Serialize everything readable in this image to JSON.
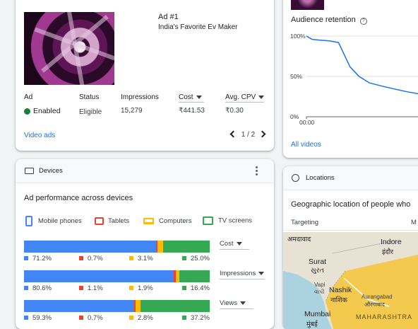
{
  "ad_card": {
    "ad_number": "Ad #1",
    "ad_title": "India's Favorite Ev Maker",
    "columns": [
      "Ad",
      "Status",
      "Impressions",
      "Cost",
      "Avg. CPV"
    ],
    "row": {
      "ad": "Enabled",
      "status": "Eligible",
      "impressions": "15,279",
      "cost": "₹441.53",
      "avg_cpv": "₹0.30"
    },
    "link": "Video ads",
    "pager": "1 / 2"
  },
  "retention": {
    "title": "Audience retention",
    "y_ticks": [
      "100%",
      "50%",
      "0%"
    ],
    "x_tick": "00:00",
    "link": "All videos",
    "chart_data": {
      "type": "line",
      "x": [
        0,
        0.05,
        0.12,
        0.2,
        0.28,
        0.38,
        0.46,
        0.55,
        0.66,
        0.78,
        0.88,
        1.0
      ],
      "y": [
        100,
        96,
        95,
        94,
        92,
        62,
        50,
        42,
        38,
        34,
        31,
        28
      ],
      "ylim": [
        0,
        100
      ],
      "ylabel": "",
      "xlabel": ""
    }
  },
  "devices": {
    "header": "Devices",
    "title": "Ad performance across devices",
    "legend": [
      {
        "label": "Mobile phones",
        "color": "#4285f4"
      },
      {
        "label": "Tablets",
        "color": "#ea4335"
      },
      {
        "label": "Computers",
        "color": "#fbbc04"
      },
      {
        "label": "TV screens",
        "color": "#34a853"
      }
    ],
    "rows": [
      {
        "metric": "Cost",
        "values": [
          "71.2%",
          "0.7%",
          "3.1%",
          "25.0%"
        ],
        "shares": [
          71.2,
          0.7,
          3.1,
          25.0
        ]
      },
      {
        "metric": "Impressions",
        "values": [
          "80.6%",
          "1.1%",
          "1.9%",
          "16.4%"
        ],
        "shares": [
          80.6,
          1.1,
          1.9,
          16.4
        ]
      },
      {
        "metric": "Views",
        "values": [
          "59.3%",
          "0.7%",
          "2.8%",
          "37.2%"
        ],
        "shares": [
          59.3,
          0.7,
          2.8,
          37.2
        ]
      }
    ]
  },
  "locations": {
    "header": "Locations",
    "title": "Geographic location of people who",
    "col_targeting": "Targeting",
    "col_partial": "M",
    "map_labels": {
      "ahmedabad_dev": "अमदावाद",
      "indore": "Indore",
      "indore_dev": "इंदौर",
      "surat": "Surat",
      "surat_dev": "સુરત",
      "vapi": "Vapi",
      "vapi_dev": "વાપી",
      "nashik": "Nashik",
      "nashik_dev": "नाशिक",
      "aurangabad": "Aurangabad",
      "aurangabad_dev": "औरंगाबाद",
      "mumbai": "Mumbai",
      "mumbai_dev": "मुंबई",
      "maharashtra": "MAHARASHTRA"
    }
  }
}
